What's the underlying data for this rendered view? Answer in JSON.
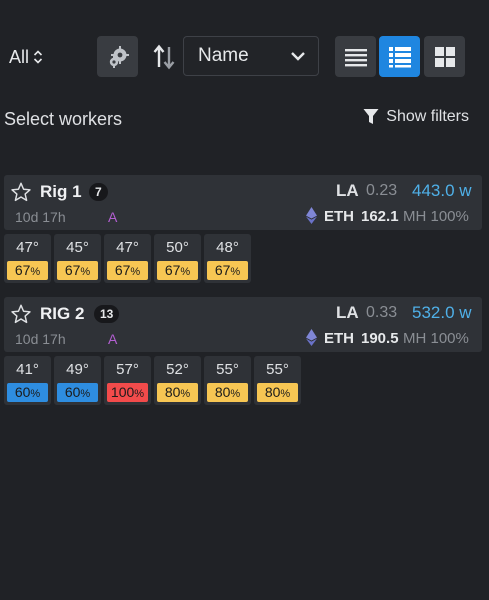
{
  "toolbar": {
    "filter_value": "All",
    "sort_value": "Name",
    "icons": {
      "filter_chevron": "up-down-chevron-icon",
      "settings": "gears-icon",
      "sort": "sort-arrows-icon",
      "sort_chevron": "chevron-down-icon",
      "view_list": "list-view-icon",
      "view_detailed": "detailed-list-icon",
      "view_grid": "grid-view-icon"
    },
    "active_view": "detailed"
  },
  "select_workers": "Select workers",
  "show_filters": "Show filters",
  "colors": {
    "background": "#202226",
    "card": "#2f3237",
    "accent_blue": "#1f86e0",
    "power": "#4fb0e8",
    "algo": "#b35fd1",
    "fan_yellow": "#f7c653",
    "fan_blue": "#2e8de0",
    "fan_red": "#f24b4b"
  },
  "workers": [
    {
      "name": "Rig 1",
      "gpu_count": "7",
      "uptime": "10d 17h",
      "algo": "A",
      "la_label": "LA",
      "la_value": "0.23",
      "power": "443.0 w",
      "coin": "ETH",
      "hashrate": "162.1",
      "unit": "MH 100%",
      "gpus": [
        {
          "temp": "47°",
          "fan": "67",
          "pct": "%"
        },
        {
          "temp": "45°",
          "fan": "67",
          "pct": "%"
        },
        {
          "temp": "47°",
          "fan": "67",
          "pct": "%"
        },
        {
          "temp": "50°",
          "fan": "67",
          "pct": "%"
        },
        {
          "temp": "48°",
          "fan": "67",
          "pct": "%"
        }
      ]
    },
    {
      "name": "RIG 2",
      "gpu_count": "13",
      "uptime": "10d 17h",
      "algo": "A",
      "la_label": "LA",
      "la_value": "0.33",
      "power": "532.0 w",
      "coin": "ETH",
      "hashrate": "190.5",
      "unit": "MH 100%",
      "gpus": [
        {
          "temp": "41°",
          "fan": "60",
          "pct": "%"
        },
        {
          "temp": "49°",
          "fan": "60",
          "pct": "%"
        },
        {
          "temp": "57°",
          "fan": "100",
          "pct": "%"
        },
        {
          "temp": "52°",
          "fan": "80",
          "pct": "%"
        },
        {
          "temp": "55°",
          "fan": "80",
          "pct": "%"
        },
        {
          "temp": "55°",
          "fan": "80",
          "pct": "%"
        }
      ]
    }
  ]
}
